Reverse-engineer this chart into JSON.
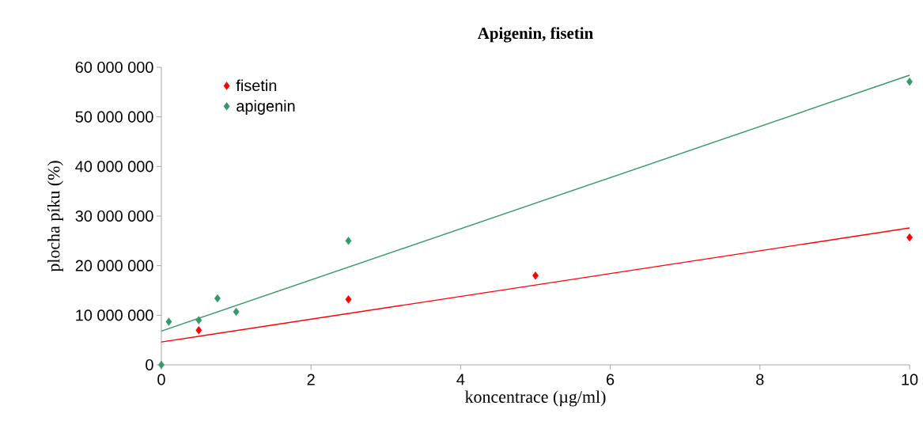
{
  "chart_data": {
    "type": "scatter",
    "title": "Apigenin, fisetin",
    "xlabel": "koncentrace (µg/ml)",
    "ylabel": "plocha píku (%)",
    "series": [
      {
        "name": "fisetin",
        "color": "#ff0000",
        "x": [
          0.5,
          2.5,
          5,
          10
        ],
        "values": [
          7000000,
          13200000,
          18000000,
          25700000
        ]
      },
      {
        "name": "apigenin",
        "color": "#339966",
        "x": [
          0,
          0.1,
          0.5,
          0.75,
          1,
          2.5,
          10
        ],
        "values": [
          0,
          8700000,
          9000000,
          13400000,
          10700000,
          25000000,
          57100000
        ]
      },
      {
        "type": "line",
        "marker": "none",
        "color": "#ff0000",
        "x": [
          0,
          10
        ],
        "values": [
          4600000,
          27600000
        ]
      },
      {
        "type": "line",
        "marker": "none",
        "color": "#339966",
        "x": [
          0,
          10
        ],
        "values": [
          6800000,
          58400000
        ]
      }
    ],
    "xlim": [
      0,
      10
    ],
    "ylim": [
      0,
      60000000
    ],
    "xticks": [
      0,
      2,
      4,
      6,
      8,
      10
    ],
    "yticks": [
      {
        "value": 0,
        "label": "0"
      },
      {
        "value": 10000000,
        "label": "10 000 000"
      },
      {
        "value": 20000000,
        "label": "20 000 000"
      },
      {
        "value": 30000000,
        "label": "30 000 000"
      },
      {
        "value": 40000000,
        "label": "40 000 000"
      },
      {
        "value": 50000000,
        "label": "50 000 000"
      },
      {
        "value": 60000000,
        "label": "60 000 000"
      }
    ],
    "marker": "diamond",
    "legend": "top left"
  }
}
